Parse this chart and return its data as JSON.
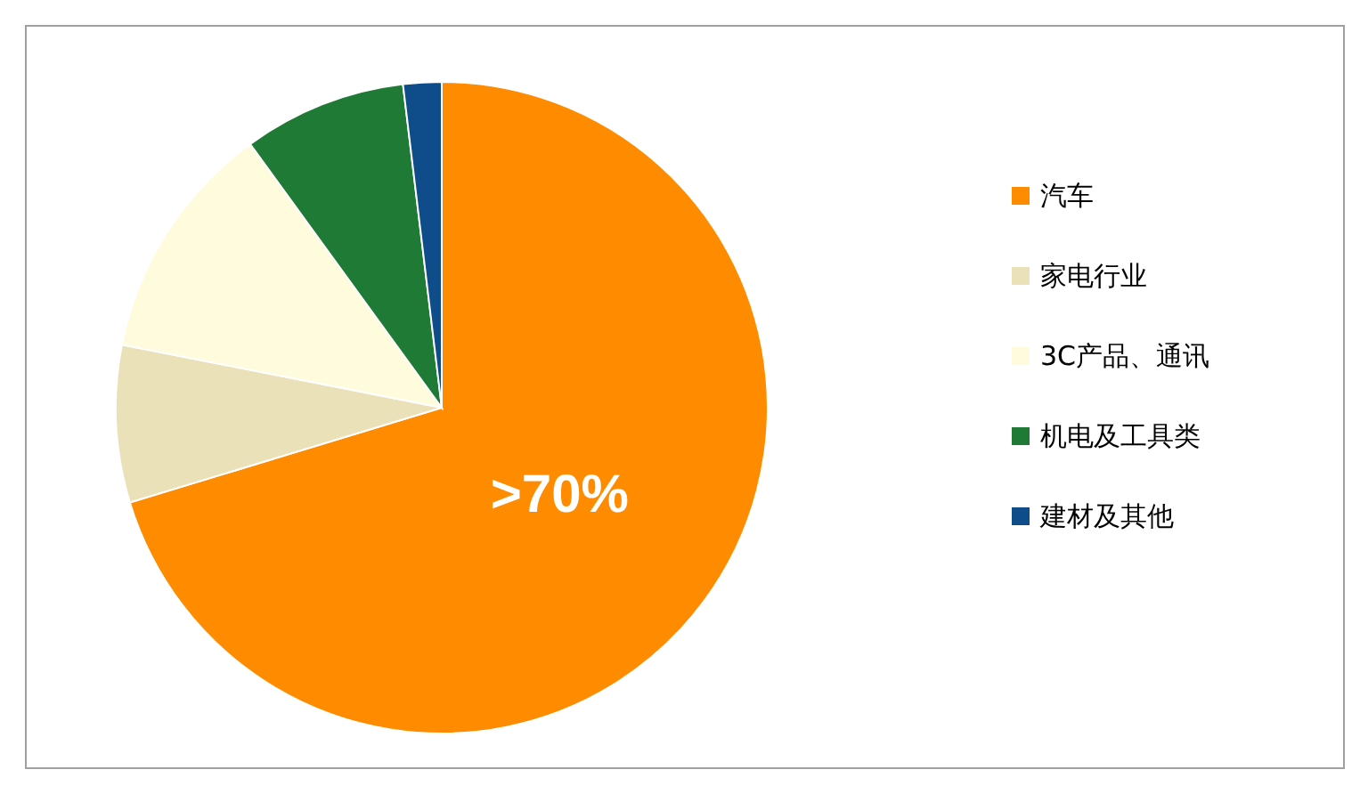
{
  "chart_data": {
    "type": "pie",
    "categories": [
      "汽车",
      "家电行业",
      "3C产品、通讯",
      "机电及工具类",
      "建材及其他"
    ],
    "values": [
      70.3,
      7.8,
      11.9,
      8.1,
      1.9
    ],
    "colors": [
      "#ff8c00",
      "#ebe1b9",
      "#fffbdc",
      "#1e7a35",
      "#0e4d8a"
    ],
    "value_labels": [
      ">70%",
      null,
      null,
      null,
      null
    ],
    "legend": "right"
  }
}
